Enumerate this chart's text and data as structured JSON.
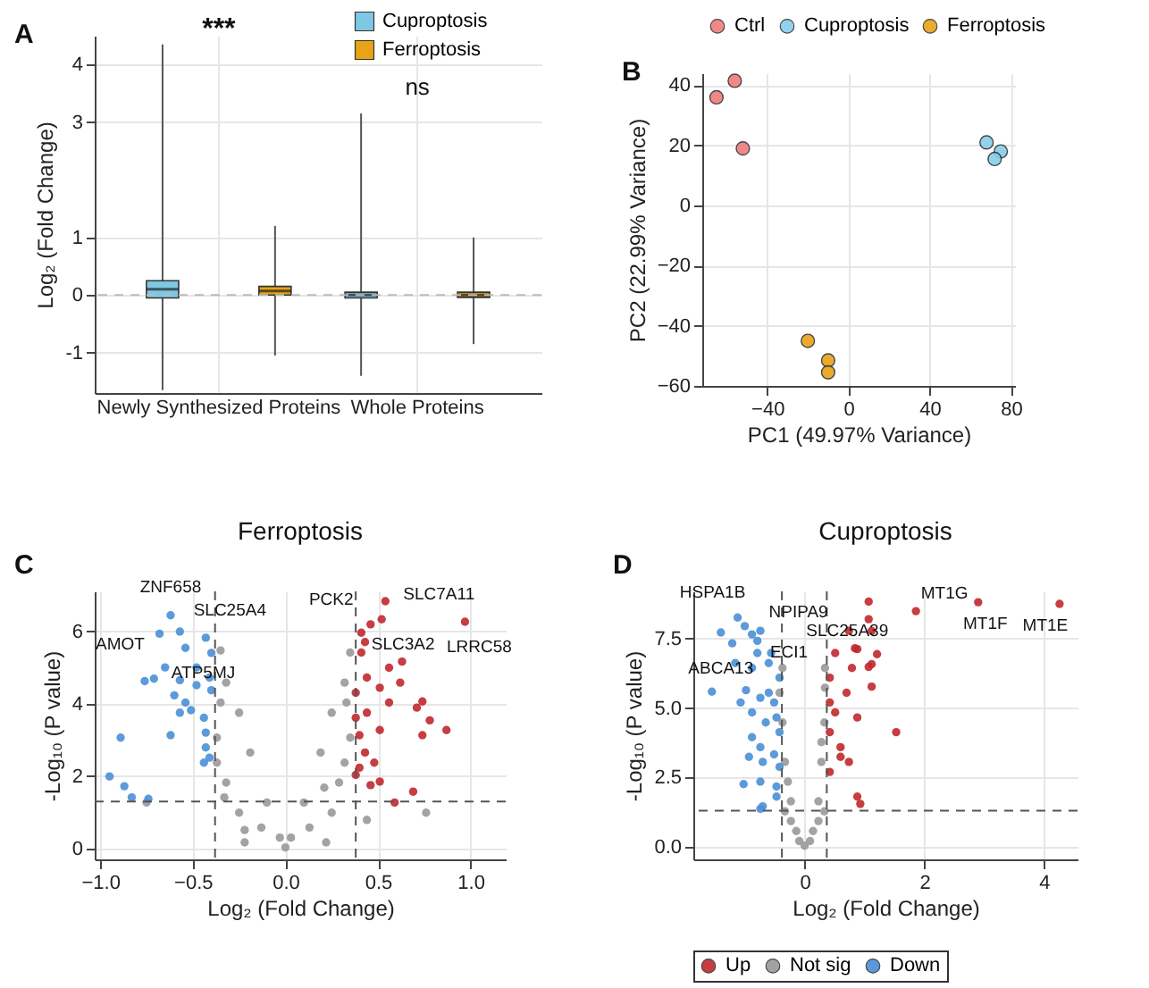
{
  "chart_data": [
    {
      "type": "box",
      "ylabel": "Log₂ (Fold Change)",
      "categories": [
        "Newly Synthesized Proteins",
        "Whole Proteins"
      ],
      "ylim": [
        -1.7,
        4.5
      ],
      "yticks": [
        -1,
        0,
        1,
        3,
        4
      ],
      "grid": true,
      "legend": "top right",
      "series": [
        {
          "name": "Cuproptosis",
          "color": "#7ec8e3",
          "boxes": [
            {
              "low": -1.65,
              "q1": -0.05,
              "median": 0.1,
              "q3": 0.25,
              "high": 4.35
            },
            {
              "low": -1.4,
              "q1": -0.05,
              "median": 0.0,
              "q3": 0.05,
              "high": 3.15
            }
          ]
        },
        {
          "name": "Ferroptosis",
          "color": "#e8a317",
          "boxes": [
            {
              "low": -1.05,
              "q1": 0.0,
              "median": 0.07,
              "q3": 0.15,
              "high": 1.2
            },
            {
              "low": -0.85,
              "q1": -0.04,
              "median": 0.0,
              "q3": 0.05,
              "high": 1.0
            }
          ]
        }
      ],
      "ref_lines": [
        {
          "axis": "y",
          "value": 0,
          "color": "#bbbbbb",
          "line_style": "dashed"
        }
      ],
      "annotations": [
        "A",
        "***",
        "ns"
      ]
    },
    {
      "type": "scatter",
      "xlabel": "PC1 (49.97% Variance)",
      "ylabel": "PC2 (22.99% Variance)",
      "xlim": [
        -72,
        82
      ],
      "ylim": [
        -60,
        44
      ],
      "xticks": [
        {
          "value": -40,
          "label": "−40"
        },
        0,
        40,
        80
      ],
      "yticks": [
        {
          "value": -60,
          "label": "−60"
        },
        {
          "value": -40,
          "label": "−40"
        },
        {
          "value": -20,
          "label": "−20"
        },
        0,
        20,
        40
      ],
      "grid": true,
      "legend": "top",
      "marker": "circle",
      "series": [
        {
          "name": "Ctrl",
          "color": "#f07c7c",
          "x": [
            -65,
            -56,
            -52
          ],
          "values": [
            36,
            41.5,
            19
          ]
        },
        {
          "name": "Cuproptosis",
          "color": "#87ceeb",
          "x": [
            68,
            75,
            72
          ],
          "values": [
            21,
            18,
            15.5
          ]
        },
        {
          "name": "Ferroptosis",
          "color": "#e8a317",
          "x": [
            -20,
            -10,
            -10
          ],
          "values": [
            -45,
            -51.5,
            -55.5
          ]
        }
      ],
      "annotations": [
        "B"
      ]
    },
    {
      "type": "scatter",
      "title": "Ferroptosis",
      "xlabel": "Log₂ (Fold Change)",
      "ylabel": "-Log₁₀ (P value)",
      "xlim": [
        -1.03,
        1.19
      ],
      "ylim": [
        -0.3,
        7.1
      ],
      "xticks": [
        {
          "value": -1,
          "label": "−1.0"
        },
        {
          "value": -0.5,
          "label": "−0.5"
        },
        {
          "value": 0,
          "label": "0.0"
        },
        0.5,
        {
          "value": 1,
          "label": "1.0"
        }
      ],
      "yticks": [
        0,
        2,
        4,
        6
      ],
      "grid": true,
      "legend": false,
      "marker": "circle",
      "series": [
        {
          "color": "#c0282d",
          "x": [
            0.54,
            0.46,
            0.52,
            0.97,
            0.63,
            0.56,
            0.41,
            0.44,
            0.51,
            0.62,
            0.56,
            0.44,
            0.71,
            0.74,
            0.78,
            0.87,
            0.74,
            0.51,
            0.4,
            0.43,
            0.48,
            0.38,
            0.4,
            0.51,
            0.46,
            0.69,
            0.59,
            0.38,
            0.38,
            0.43,
            0.41
          ],
          "values": [
            6.83,
            6.19,
            6.33,
            6.26,
            5.16,
            4.99,
            5.41,
            4.72,
            4.44,
            4.58,
            4.03,
            3.75,
            3.89,
            4.06,
            3.54,
            3.27,
            3.13,
            3.27,
            3.13,
            2.65,
            2.37,
            2.03,
            2.23,
            1.85,
            1.75,
            1.57,
            1.27,
            4.3,
            3.61,
            5.7,
            5.96
          ]
        },
        {
          "color": "#999999",
          "x": [
            0,
            -0.03,
            0.03,
            -0.1,
            0.1,
            -0.19,
            0.19,
            -0.25,
            0.25,
            -0.32,
            0.32,
            -0.35,
            0.35,
            -0.13,
            0.13,
            -0.25,
            0.25,
            -0.32,
            0.29,
            -0.37,
            0.32,
            -0.37,
            0.35,
            -0.35,
            0.33,
            -0.22,
            0.22,
            -0.22,
            0.44,
            0.76,
            -0.75,
            -0.33,
            0.21
          ],
          "values": [
            0.03,
            0.3,
            0.3,
            1.27,
            1.27,
            2.65,
            2.65,
            3.75,
            3.75,
            4.58,
            4.58,
            5.47,
            5.41,
            0.58,
            0.58,
            0.99,
            0.99,
            1.82,
            1.82,
            2.37,
            2.37,
            3.06,
            3.06,
            4.03,
            4.03,
            0.17,
            0.17,
            0.51,
            0.79,
            0.99,
            1.27,
            1.41,
            1.68
          ]
        },
        {
          "color": "#4a8fd6",
          "x": [
            -0.62,
            -0.68,
            -0.57,
            -0.43,
            -0.4,
            -0.71,
            -0.76,
            -0.57,
            -0.6,
            -0.54,
            -0.51,
            -0.57,
            -0.44,
            -0.62,
            -0.89,
            -0.43,
            -0.43,
            -0.41,
            -0.44,
            -0.95,
            -0.87,
            -0.83,
            -0.74,
            -0.48,
            -0.41,
            -0.4,
            -0.48,
            -0.54,
            -0.65
          ],
          "values": [
            6.44,
            5.93,
            5.99,
            5.82,
            5.4,
            4.69,
            4.62,
            4.65,
            4.23,
            4.03,
            3.82,
            3.75,
            3.61,
            3.13,
            3.06,
            3.2,
            2.79,
            2.51,
            2.37,
            1.99,
            1.72,
            1.41,
            1.37,
            5.0,
            4.72,
            4.37,
            4.51,
            5.54,
            5.0
          ]
        }
      ],
      "ref_lines": [
        {
          "axis": "x",
          "value": -0.38,
          "color": "#555555",
          "line_style": "dashed"
        },
        {
          "axis": "x",
          "value": 0.38,
          "color": "#555555",
          "line_style": "dashed"
        },
        {
          "axis": "y",
          "value": 1.3,
          "color": "#555555",
          "line_style": "dashed"
        }
      ],
      "annotations": [
        "C",
        {
          "text": "ZNF658",
          "x": -0.62,
          "y": 6.44
        },
        {
          "text": "SLC25A4",
          "x": -0.57,
          "y": 5.99
        },
        {
          "text": "AMOT",
          "x": -0.68,
          "y": 5.93
        },
        {
          "text": "ATP5MJ",
          "x": -0.54,
          "y": 5.54
        },
        {
          "text": "PCK2",
          "x": 0.46,
          "y": 6.19
        },
        {
          "text": "SLC7A11",
          "x": 0.54,
          "y": 6.83
        },
        {
          "text": "SLC3A2",
          "x": 0.52,
          "y": 6.33
        },
        {
          "text": "LRRC58",
          "x": 0.97,
          "y": 6.26
        }
      ]
    },
    {
      "type": "scatter",
      "title": "Cuproptosis",
      "xlabel": "Log₂ (Fold Change)",
      "ylabel": "-Log₁₀ (P value)",
      "xlim": [
        -1.86,
        4.56
      ],
      "ylim": [
        -0.45,
        9.2
      ],
      "xticks": [
        0,
        2,
        4
      ],
      "yticks": [
        {
          "value": 0,
          "label": "0.0"
        },
        2.5,
        {
          "value": 5,
          "label": "5.0"
        },
        7.5
      ],
      "grid": true,
      "legend": "bottom",
      "marker": "circle",
      "series": [
        {
          "name": "Up",
          "color": "#c0282d",
          "x": [
            1.07,
            1.86,
            2.9,
            4.26,
            1.12,
            0.74,
            0.88,
            1.21,
            1.12,
            1.07,
            1.12,
            1.53,
            0.88,
            0.51,
            0.42,
            0.7,
            0.51,
            0.42,
            0.6,
            0.42,
            0.88,
            0.93,
            0.79,
            0.84,
            0.42,
            0.6,
            0.74,
            1.07
          ],
          "values": [
            8.83,
            8.49,
            8.81,
            8.75,
            7.78,
            7.78,
            7.12,
            6.94,
            6.58,
            6.48,
            5.77,
            4.13,
            4.66,
            6.98,
            6.09,
            5.55,
            4.84,
            4.13,
            3.59,
            2.7,
            1.81,
            1.55,
            6.44,
            7.15,
            5.2,
            3.24,
            3.06,
            8.2
          ]
        },
        {
          "name": "Not sig",
          "color": "#999999",
          "x": [
            0,
            -0.14,
            0.14,
            -0.23,
            0.23,
            -0.33,
            0.28,
            -0.37,
            0.33,
            -0.42,
            0.34,
            0.34,
            -0.37,
            -0.28,
            0.28,
            -0.09,
            0.09,
            -0.23,
            0.23,
            -0.33,
            0.33
          ],
          "values": [
            0.04,
            0.57,
            0.57,
            1.64,
            1.64,
            3.06,
            3.06,
            4.48,
            4.48,
            5.55,
            5.73,
            6.44,
            6.44,
            2.35,
            3.77,
            0.21,
            0.21,
            0.93,
            0.93,
            1.28,
            1.28
          ]
        },
        {
          "name": "Down",
          "color": "#4a8fd6",
          "x": [
            -1.12,
            -1.4,
            -1.0,
            -0.88,
            -0.74,
            -1.21,
            -0.79,
            -0.6,
            -1.16,
            -0.88,
            -1.55,
            -0.98,
            -0.74,
            -0.51,
            -1.07,
            -0.88,
            -0.65,
            -0.47,
            -0.88,
            -0.74,
            -0.93,
            -0.7,
            -0.51,
            -1.02,
            -0.74,
            -0.47,
            -0.42,
            -0.47,
            -0.74,
            -0.7,
            -0.42,
            -0.42,
            -0.56,
            -0.79,
            -0.6
          ],
          "values": [
            8.26,
            7.72,
            7.95,
            7.65,
            7.78,
            7.33,
            6.98,
            6.62,
            6.62,
            6.44,
            5.59,
            5.64,
            5.37,
            5.2,
            5.2,
            4.84,
            4.48,
            4.66,
            3.95,
            3.59,
            3.24,
            3.06,
            3.33,
            2.26,
            2.35,
            2.17,
            2.88,
            1.81,
            1.37,
            1.46,
            4.13,
            6.09,
            6.98,
            7.42,
            5.55
          ]
        }
      ],
      "ref_lines": [
        {
          "axis": "x",
          "value": -0.38,
          "color": "#555555",
          "line_style": "dashed"
        },
        {
          "axis": "x",
          "value": 0.37,
          "color": "#555555",
          "line_style": "dashed"
        },
        {
          "axis": "y",
          "value": 1.3,
          "color": "#555555",
          "line_style": "dashed"
        }
      ],
      "annotations": [
        "D",
        {
          "text": "HSPA1B",
          "x": -1.12,
          "y": 8.26
        },
        {
          "text": "NPIPA9",
          "x": -1.0,
          "y": 7.95
        },
        {
          "text": "ECI1",
          "x": -0.74,
          "y": 7.78
        },
        {
          "text": "ABCA13",
          "x": -1.4,
          "y": 7.72
        },
        {
          "text": "SLC25A39",
          "x": 1.07,
          "y": 8.83
        },
        {
          "text": "MT1G",
          "x": 1.86,
          "y": 8.49
        },
        {
          "text": "MT1F",
          "x": 2.9,
          "y": 8.81
        },
        {
          "text": "MT1E",
          "x": 4.26,
          "y": 8.75
        }
      ]
    }
  ]
}
